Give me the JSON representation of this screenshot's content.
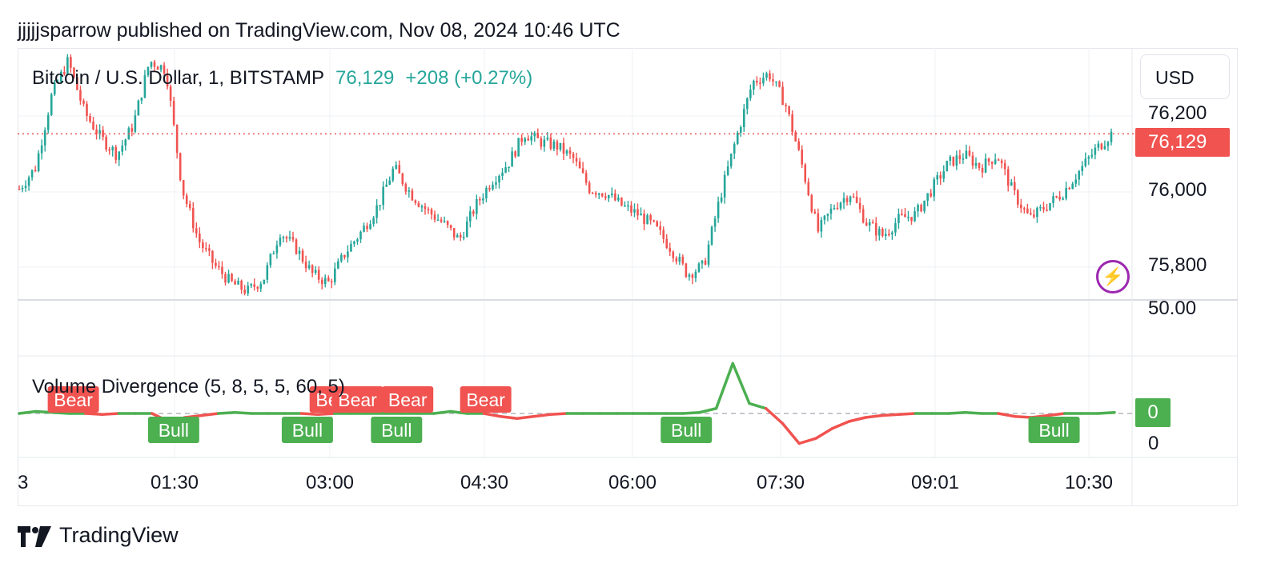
{
  "header": {
    "text": "jjjjjsparrow published on TradingView.com, Nov 08, 2024 10:46 UTC"
  },
  "symbol": {
    "name": "Bitcoin / U.S. Dollar, 1, BITSTAMP",
    "price": "76,129",
    "change": "+208 (+0.27%)"
  },
  "currency": "USD",
  "price_tag": "76,129",
  "indicator": {
    "title": "Volume Divergence (5, 8, 5, 5, 60, 5)",
    "value_tag": "0"
  },
  "brand": {
    "name": "TradingView",
    "icon": "tradingview-logo-icon"
  },
  "colors": {
    "up": "#26a69a",
    "down": "#f05350",
    "bull": "#4caf50",
    "bear": "#f05350",
    "alert": "#9c27b0"
  },
  "chart_data": [
    {
      "type": "candlestick",
      "title": "Bitcoin / U.S. Dollar, 1, BITSTAMP",
      "xlabel": "",
      "ylabel": "",
      "x_tick_labels": [
        "3",
        "01:30",
        "03:00",
        "04:30",
        "06:00",
        "07:30",
        "09:01",
        "10:30"
      ],
      "y_tick_labels": [
        "76,200",
        "76,000",
        "75,800"
      ],
      "y_ticks": [
        76200,
        76000,
        75800
      ],
      "ylim": [
        75740,
        76330
      ],
      "last_price": 76129,
      "grid": true,
      "series": [
        {
          "name": "",
          "values": [
            76000,
            76050,
            76220,
            76300,
            76180,
            76120,
            76080,
            76150,
            76300,
            76280,
            76000,
            75880,
            75820,
            75780,
            75760,
            75790,
            75900,
            75860,
            75800,
            75780,
            75850,
            75900,
            75960,
            76050,
            75990,
            75950,
            75920,
            75880,
            75960,
            76020,
            76060,
            76130,
            76110,
            76100,
            76070,
            76000,
            75990,
            75960,
            75940,
            75910,
            75860,
            75800,
            75820,
            75980,
            76120,
            76250,
            76270,
            76200,
            76060,
            75900,
            75960,
            75990,
            75920,
            75890,
            75930,
            75940,
            76000,
            76060,
            76080,
            76050,
            76080,
            75990,
            75930,
            75960,
            75990,
            76040,
            76090,
            76129
          ]
        }
      ]
    },
    {
      "type": "line",
      "title": "Volume Divergence (5, 8, 5, 5, 60, 5)",
      "y_tick_labels": [
        "50.00",
        "0"
      ],
      "ylim": [
        -50,
        70
      ],
      "series": [
        {
          "name": "",
          "values": [
            0,
            2,
            1,
            0,
            0,
            -1,
            0,
            0,
            0,
            -8,
            -4,
            -2,
            0,
            1,
            0,
            0,
            0,
            0,
            -1,
            0,
            0,
            0,
            0,
            0,
            0,
            0,
            2,
            0,
            0,
            -3,
            -5,
            -3,
            -1,
            0,
            0,
            0,
            0,
            0,
            0,
            0,
            0,
            1,
            5,
            50,
            10,
            5,
            -10,
            -30,
            -25,
            -15,
            -8,
            -4,
            -2,
            -1,
            0,
            0,
            0,
            1,
            0,
            0,
            -3,
            -4,
            -2,
            0,
            0,
            0,
            1
          ]
        }
      ],
      "annotations": [
        {
          "label": "Bear",
          "x_frac": 0.05,
          "y": 10
        },
        {
          "label": "Bull",
          "x_frac": 0.14,
          "y": -20
        },
        {
          "label": "Bull",
          "x_frac": 0.26,
          "y": -26
        },
        {
          "label": "Bear",
          "x_frac": 0.285,
          "y": 10
        },
        {
          "label": "Bear",
          "x_frac": 0.305,
          "y": 10
        },
        {
          "label": "Bear",
          "x_frac": 0.35,
          "y": 10
        },
        {
          "label": "Bull",
          "x_frac": 0.34,
          "y": -24
        },
        {
          "label": "Bear",
          "x_frac": 0.42,
          "y": 12
        },
        {
          "label": "Bull",
          "x_frac": 0.6,
          "y": -20
        },
        {
          "label": "Bull",
          "x_frac": 0.93,
          "y": -26
        }
      ]
    }
  ]
}
